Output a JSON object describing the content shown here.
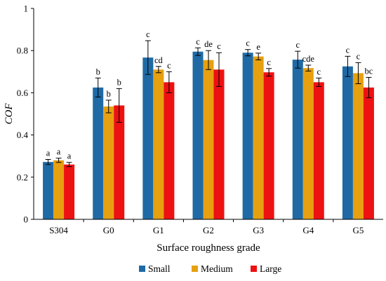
{
  "chart_data": {
    "type": "bar",
    "title": "",
    "xlabel": "Surface roughness grade",
    "ylabel": "COF",
    "ylim": [
      0,
      1
    ],
    "yticks": [
      "0",
      "0.2",
      "0.4",
      "0.6",
      "0.8",
      "1"
    ],
    "grid": false,
    "legend_position": "bottom",
    "error_bars": true,
    "categories": [
      "S304",
      "G0",
      "G1",
      "G2",
      "G3",
      "G4",
      "G5"
    ],
    "series": [
      {
        "name": "Small",
        "color": "#1f6aa5",
        "values": [
          0.272,
          0.625,
          0.767,
          0.795,
          0.79,
          0.757,
          0.725
        ],
        "errors": [
          0.012,
          0.045,
          0.08,
          0.018,
          0.015,
          0.04,
          0.048
        ],
        "labels": [
          "a",
          "b",
          "c",
          "c",
          "c",
          "c",
          "c"
        ]
      },
      {
        "name": "Medium",
        "color": "#e6a010",
        "values": [
          0.28,
          0.535,
          0.71,
          0.755,
          0.772,
          0.717,
          0.693
        ],
        "errors": [
          0.01,
          0.03,
          0.015,
          0.045,
          0.016,
          0.014,
          0.05
        ],
        "labels": [
          "a",
          "b",
          "cd",
          "de",
          "e",
          "cde",
          "c"
        ]
      },
      {
        "name": "Large",
        "color": "#ee1111",
        "values": [
          0.26,
          0.54,
          0.65,
          0.71,
          0.697,
          0.65,
          0.625
        ],
        "errors": [
          0.01,
          0.08,
          0.05,
          0.08,
          0.018,
          0.02,
          0.048
        ],
        "labels": [
          "a",
          "b",
          "c",
          "c",
          "c",
          "c",
          "bc"
        ]
      }
    ]
  }
}
